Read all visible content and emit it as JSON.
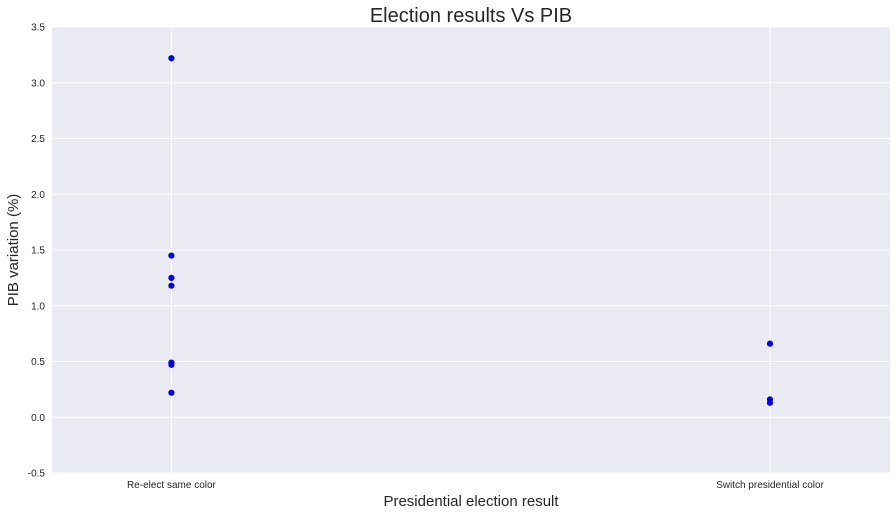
{
  "chart_data": {
    "type": "scatter",
    "title": "Election results Vs PIB",
    "xlabel": "Presidential election result",
    "ylabel": "PIB variation (%)",
    "categories": [
      "Re-elect same color",
      "Switch presidential color"
    ],
    "ylim": [
      -0.5,
      3.5
    ],
    "yticks": [
      "-0.5",
      "0.0",
      "0.5",
      "1.0",
      "1.5",
      "2.0",
      "2.5",
      "3.0",
      "3.5"
    ],
    "grid": true,
    "series": [
      {
        "points": [
          {
            "x": "Re-elect same color",
            "y": 3.22
          },
          {
            "x": "Re-elect same color",
            "y": 1.45
          },
          {
            "x": "Re-elect same color",
            "y": 1.25
          },
          {
            "x": "Re-elect same color",
            "y": 1.18
          },
          {
            "x": "Re-elect same color",
            "y": 0.49
          },
          {
            "x": "Re-elect same color",
            "y": 0.47
          },
          {
            "x": "Re-elect same color",
            "y": 0.22
          },
          {
            "x": "Switch presidential color",
            "y": 0.66
          },
          {
            "x": "Switch presidential color",
            "y": 0.16
          },
          {
            "x": "Switch presidential color",
            "y": 0.13
          }
        ]
      }
    ],
    "colors": {
      "background": "#eaeaf2",
      "grid": "#ffffff",
      "marker": "#0000ff",
      "marker_edge": "#0000aa"
    }
  }
}
